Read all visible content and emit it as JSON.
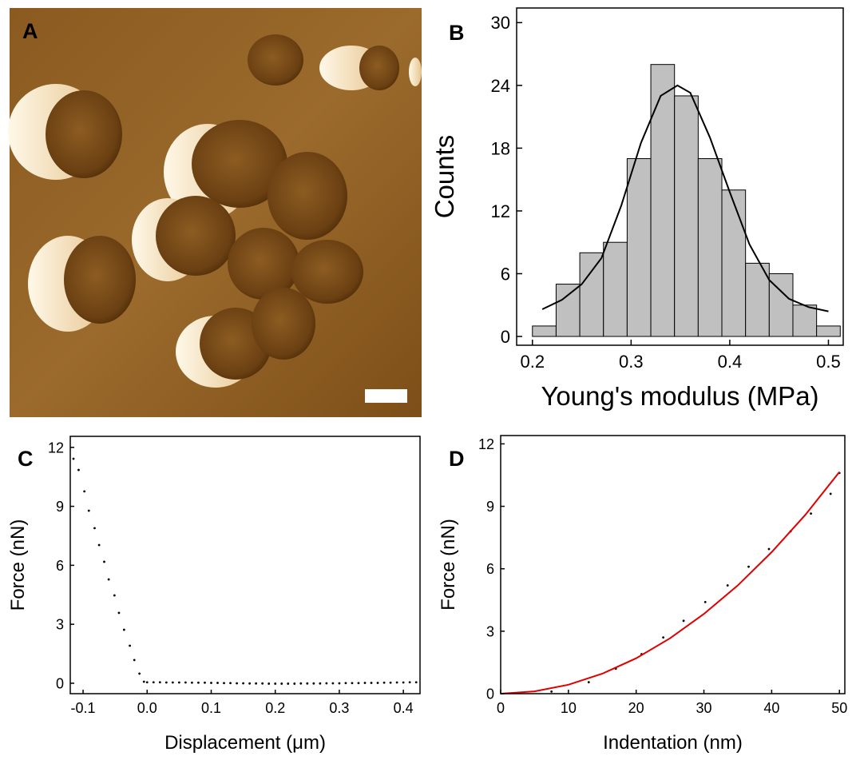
{
  "chart_data": [
    {
      "type": "image",
      "panel_label": "A"
    },
    {
      "type": "histogram",
      "panel_label": "B",
      "xlabel": "Young's modulus (MPa)",
      "ylabel": "Counts",
      "bins": [
        0.2,
        0.224,
        0.248,
        0.272,
        0.296,
        0.32,
        0.344,
        0.368,
        0.392,
        0.416,
        0.44,
        0.464,
        0.488,
        0.512
      ],
      "counts": [
        1,
        5,
        8,
        9,
        17,
        26,
        23,
        17,
        14,
        7,
        6,
        3,
        1
      ],
      "color": "#c0c0c0",
      "fit": {
        "x": [
          0.21,
          0.23,
          0.25,
          0.27,
          0.29,
          0.31,
          0.33,
          0.347,
          0.36,
          0.38,
          0.4,
          0.42,
          0.44,
          0.46,
          0.48,
          0.5
        ],
        "values": [
          2.6,
          3.5,
          5.0,
          7.5,
          12.5,
          18.5,
          23,
          24,
          23.3,
          19,
          13.8,
          8.8,
          5.4,
          3.6,
          2.8,
          2.4
        ],
        "color": "#000000"
      },
      "xlim": [
        0.184,
        0.515
      ],
      "ylim": [
        -0.84,
        31.4
      ],
      "xticks": [
        0.2,
        0.3,
        0.4,
        0.5
      ],
      "yticks": [
        0,
        6,
        12,
        18,
        24,
        30
      ]
    },
    {
      "type": "scatter",
      "panel_label": "C",
      "xlabel": "Displacement (μm)",
      "ylabel": "Force (nN)",
      "color": "#000000",
      "x": [
        -0.115,
        -0.107,
        -0.098,
        -0.091,
        -0.082,
        -0.075,
        -0.067,
        -0.06,
        -0.051,
        -0.044,
        -0.036,
        -0.027,
        -0.02,
        -0.012,
        -0.005,
        0.0,
        0.01,
        0.02,
        0.03,
        0.04,
        0.05,
        0.06,
        0.07,
        0.08,
        0.09,
        0.1,
        0.11,
        0.12,
        0.13,
        0.14,
        0.15,
        0.16,
        0.17,
        0.18,
        0.19,
        0.2,
        0.21,
        0.22,
        0.23,
        0.24,
        0.25,
        0.26,
        0.27,
        0.28,
        0.29,
        0.3,
        0.31,
        0.32,
        0.33,
        0.34,
        0.35,
        0.36,
        0.37,
        0.38,
        0.39,
        0.4,
        0.41,
        0.42
      ],
      "values": [
        11.42,
        10.85,
        9.76,
        8.78,
        7.89,
        7.03,
        6.18,
        5.28,
        4.47,
        3.58,
        2.72,
        1.91,
        1.18,
        0.49,
        0.08,
        0.05,
        0.05,
        0.05,
        0.04,
        0.04,
        0.04,
        0.04,
        0.03,
        0.03,
        0.03,
        0.02,
        0.02,
        0.01,
        0.01,
        0.0,
        0.0,
        -0.01,
        -0.01,
        -0.01,
        -0.02,
        -0.02,
        -0.02,
        -0.02,
        -0.02,
        -0.01,
        -0.01,
        -0.01,
        -0.01,
        0.0,
        0.0,
        0.0,
        0.01,
        0.01,
        0.01,
        0.02,
        0.02,
        0.02,
        0.03,
        0.03,
        0.04,
        0.04,
        0.05,
        0.05
      ],
      "xlim": [
        -0.12,
        0.426
      ],
      "ylim": [
        -0.53,
        12.56
      ],
      "xticks": [
        -0.1,
        {
          "value": 0,
          "label": "0.0"
        },
        0.1,
        0.2,
        0.3,
        0.4
      ],
      "yticks": [
        0,
        3,
        6,
        9,
        12
      ]
    },
    {
      "type": "scatter",
      "panel_label": "D",
      "xlabel": "Indentation (nm)",
      "ylabel": "Force (nN)",
      "color": "#000000",
      "x": [
        7.5,
        13,
        17,
        20.8,
        24,
        27,
        30.2,
        33.5,
        36.6,
        39.6,
        42.8,
        45.8,
        48.7,
        50
      ],
      "values": [
        0.1,
        0.55,
        1.2,
        1.9,
        2.7,
        3.5,
        4.4,
        5.2,
        6.1,
        6.95,
        7.8,
        8.65,
        9.6,
        10.6
      ],
      "fit": {
        "x": [
          0,
          5,
          10,
          15,
          20,
          25,
          30,
          35,
          40,
          45,
          50
        ],
        "values": [
          0,
          0.11,
          0.43,
          0.96,
          1.7,
          2.66,
          3.83,
          5.2,
          6.8,
          8.6,
          10.65
        ],
        "color": "#e00000"
      },
      "xlim": [
        0,
        50.8
      ],
      "ylim": [
        0,
        12.4
      ],
      "xticks": [
        0,
        10,
        20,
        30,
        40,
        50
      ],
      "yticks": [
        0,
        3,
        6,
        9,
        12
      ]
    }
  ]
}
